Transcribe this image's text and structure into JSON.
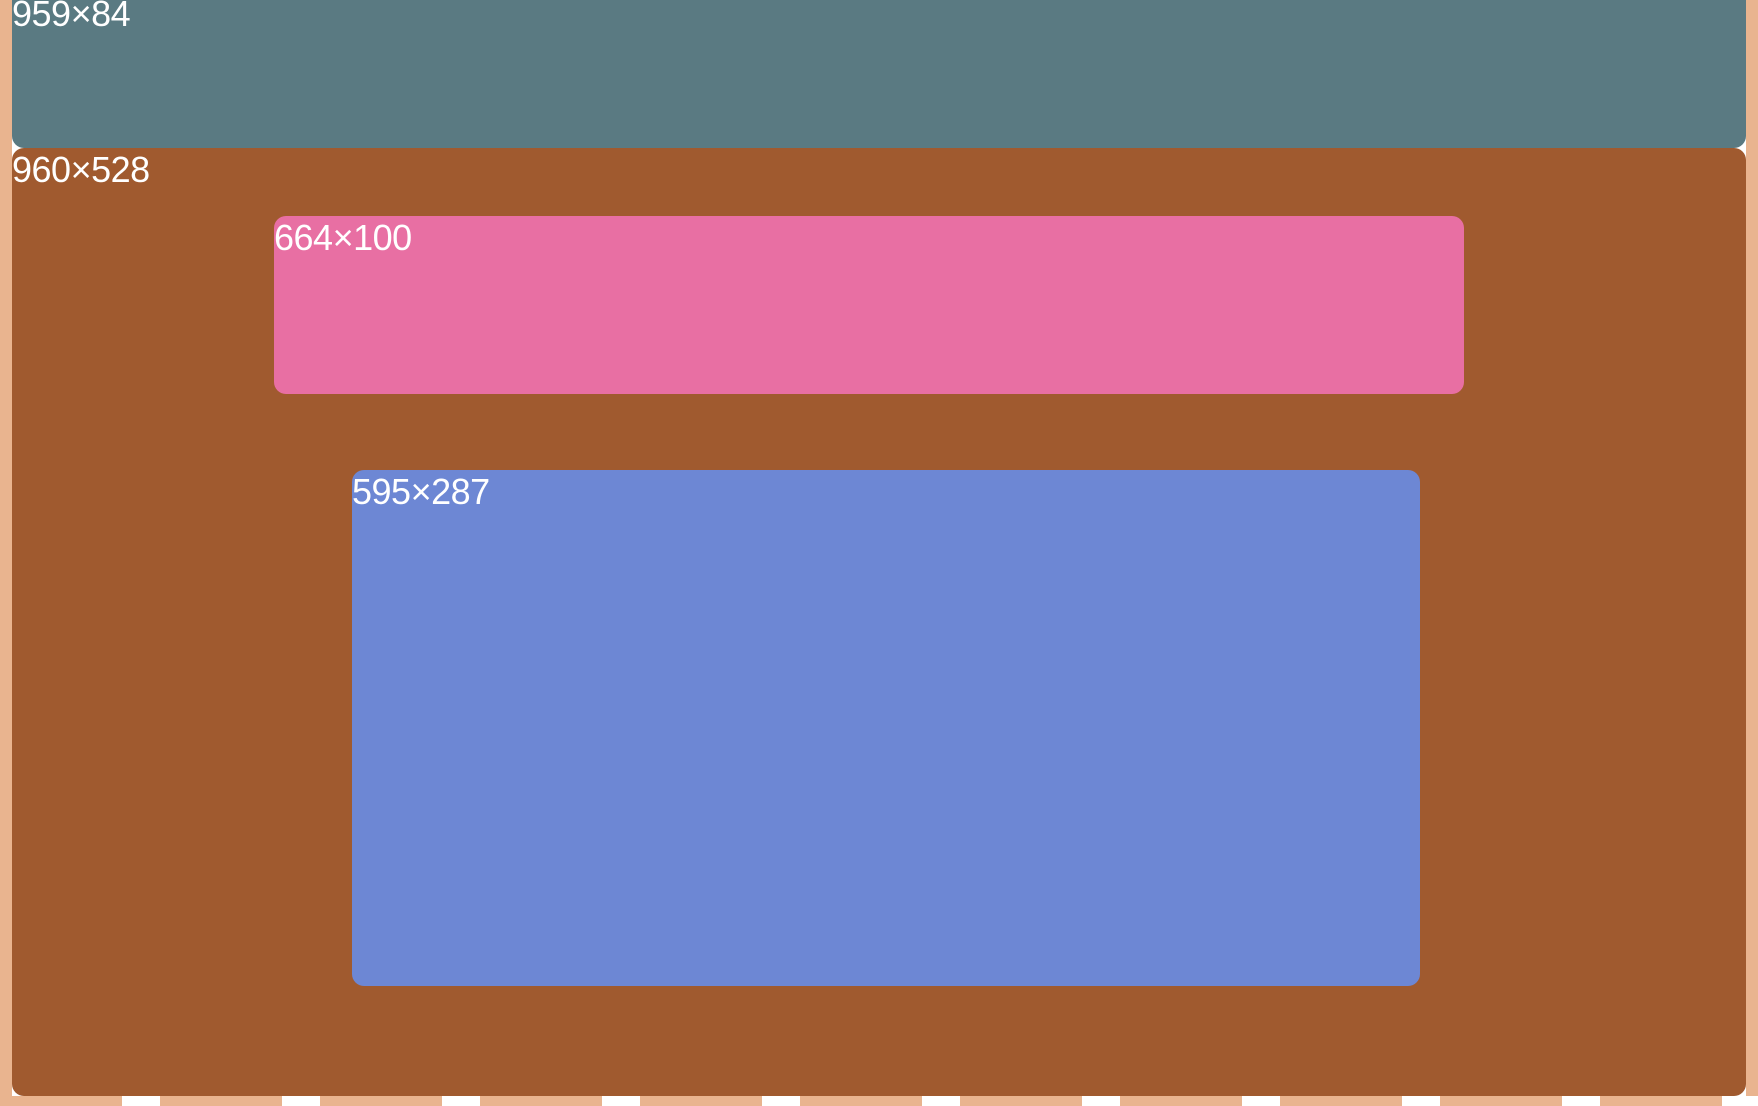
{
  "colors": {
    "stripe": "#e9b48f",
    "header": "#5a7a82",
    "main": "#a05a2f",
    "banner": "#e86fa3",
    "content": "#6d87d4"
  },
  "header": {
    "label": "959×84"
  },
  "main": {
    "label": "960×528",
    "banner": {
      "label": "664×100"
    },
    "content": {
      "label": "595×287"
    }
  }
}
